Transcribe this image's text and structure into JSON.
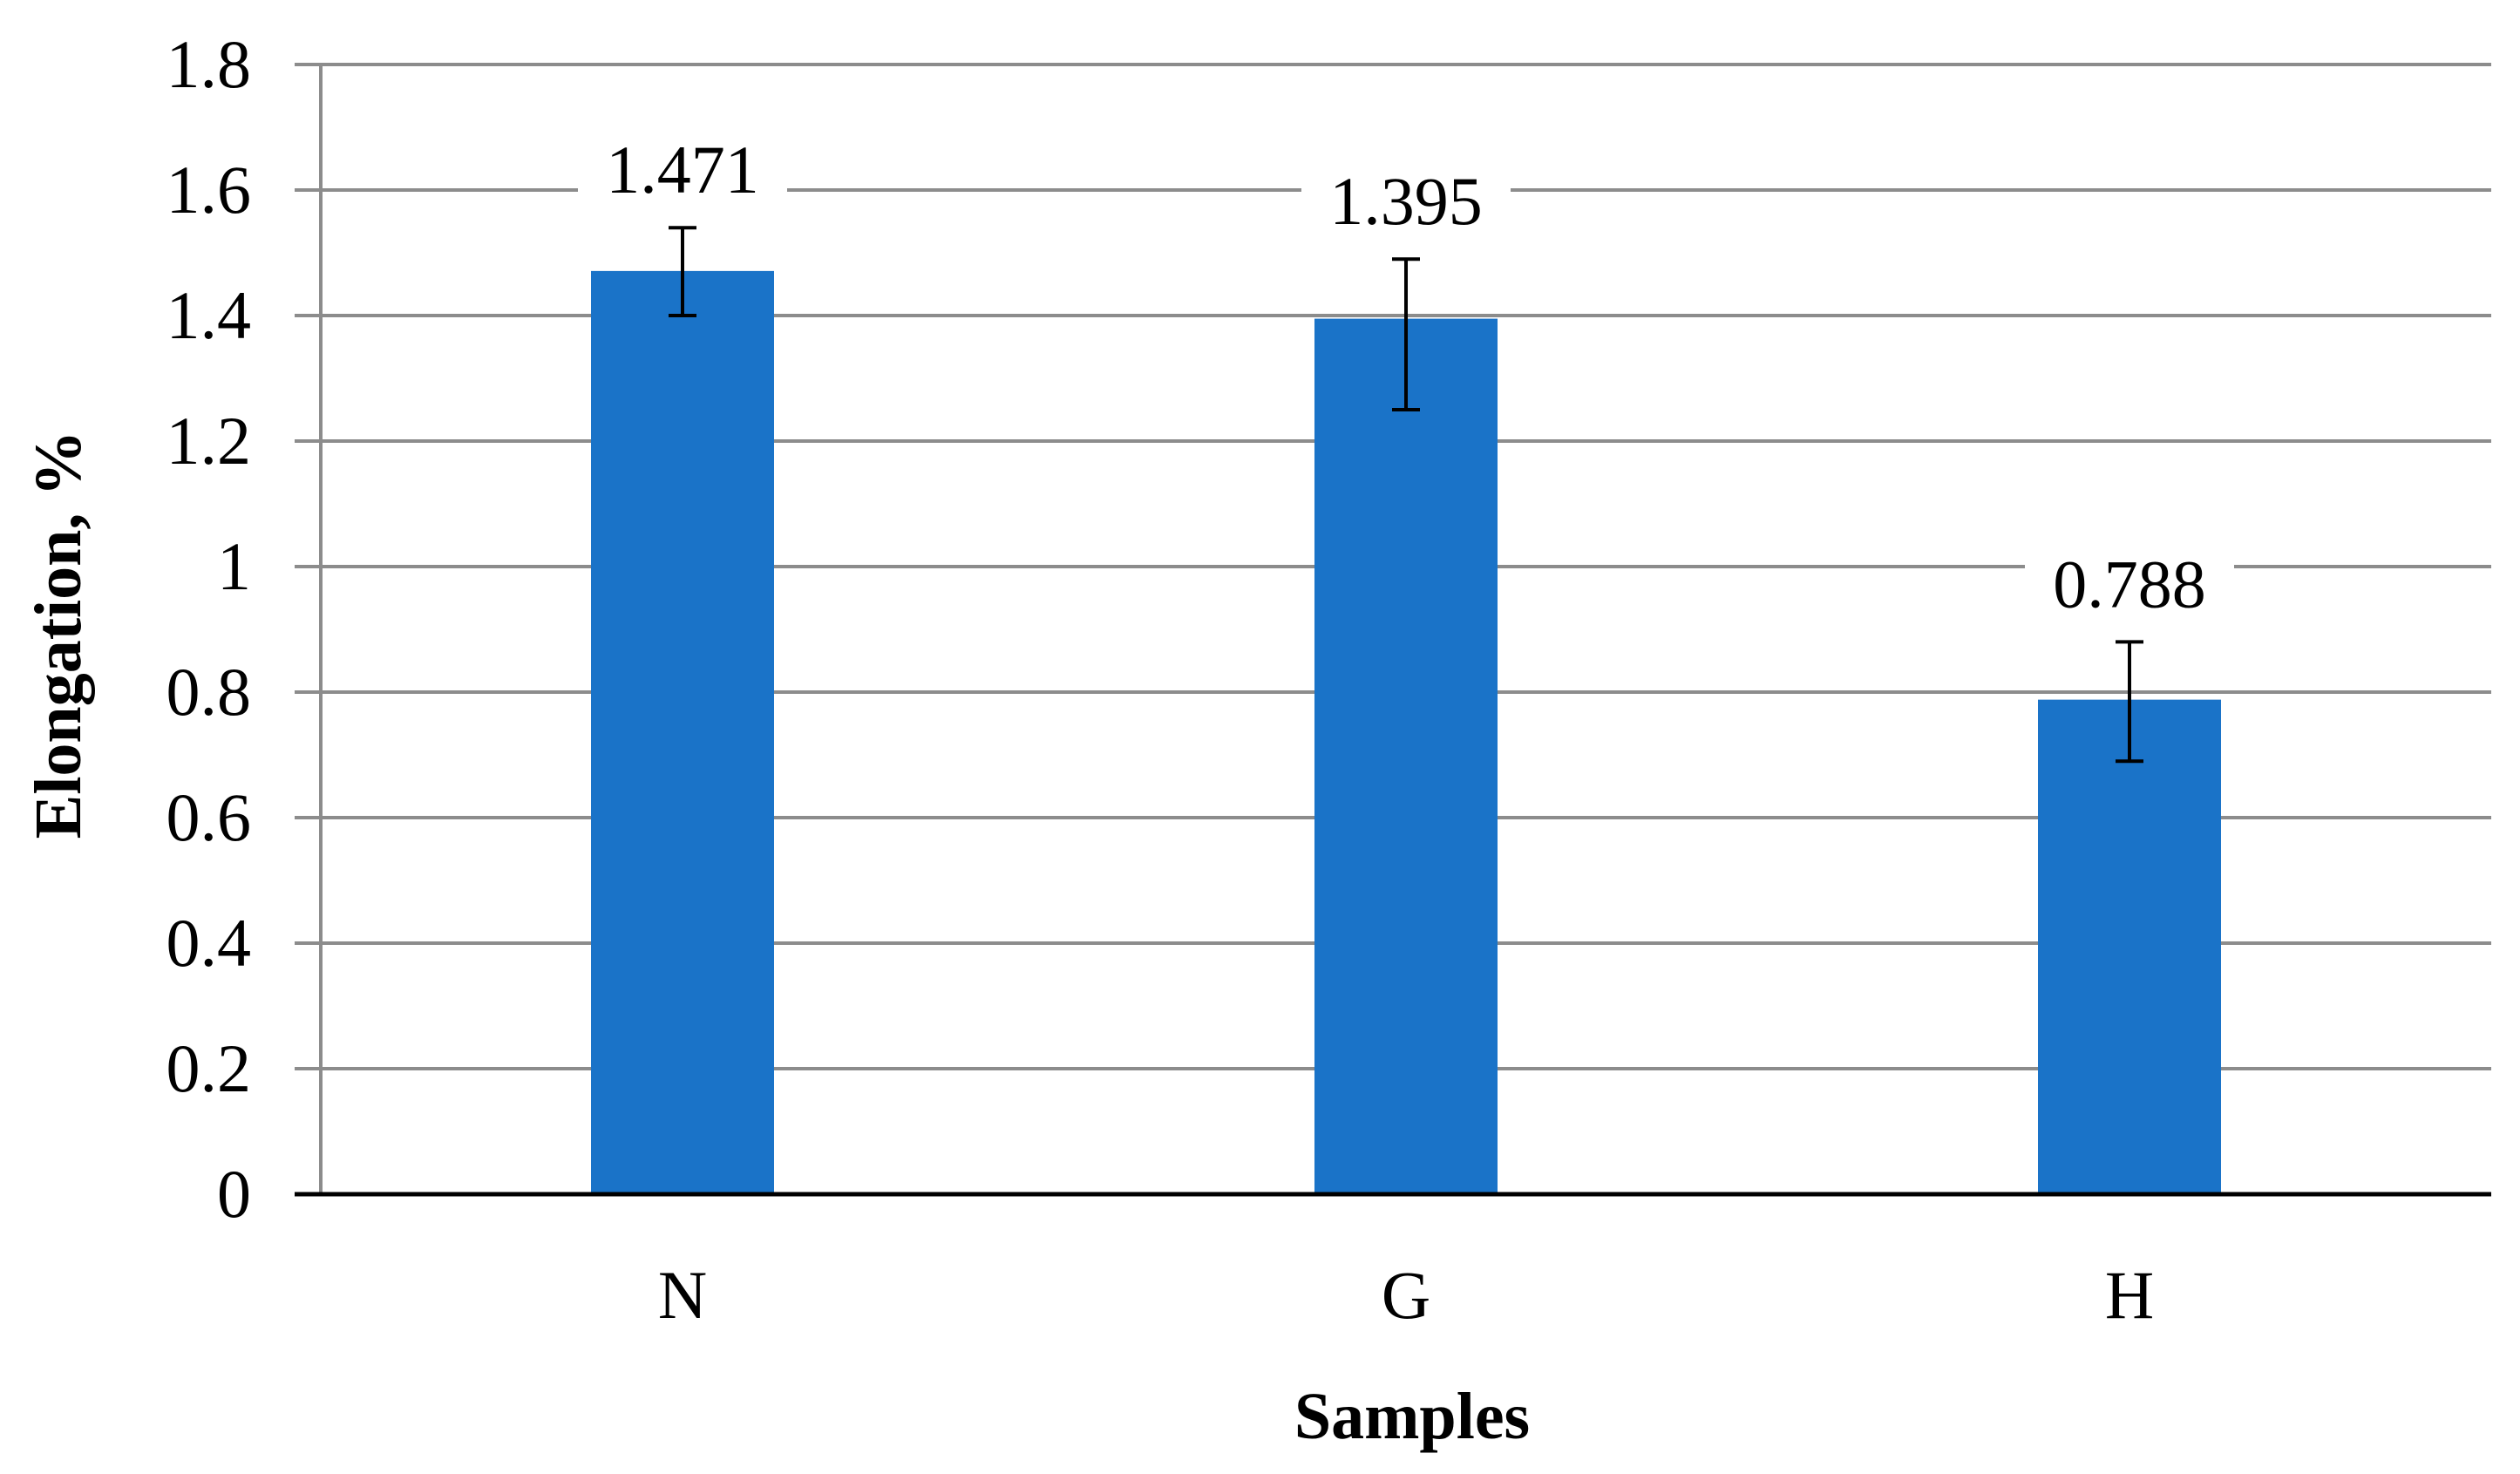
{
  "chart_data": {
    "type": "bar",
    "title": "",
    "xlabel": "Samples",
    "ylabel": "Elongation, %",
    "categories": [
      "N",
      "G",
      "H"
    ],
    "values": [
      1.471,
      1.395,
      0.788
    ],
    "data_labels": [
      "1.471",
      "1.395",
      "0.788"
    ],
    "error_low": [
      1.4,
      1.25,
      0.69
    ],
    "error_high": [
      1.54,
      1.49,
      0.88
    ],
    "ylim": [
      0,
      1.8
    ],
    "yticks": [
      0,
      0.2,
      0.4,
      0.6,
      0.8,
      1,
      1.2,
      1.4,
      1.6,
      1.8
    ],
    "ytick_labels": [
      "0",
      "0.2",
      "0.4",
      "0.6",
      "0.8",
      "1",
      "1.2",
      "1.4",
      "1.6",
      "1.8"
    ],
    "grid": true,
    "legend": "none",
    "colors": {
      "bar": "#1a73c8",
      "grid": "#8c8c8c",
      "axis": "#000000",
      "error_bar": "#000000"
    }
  }
}
